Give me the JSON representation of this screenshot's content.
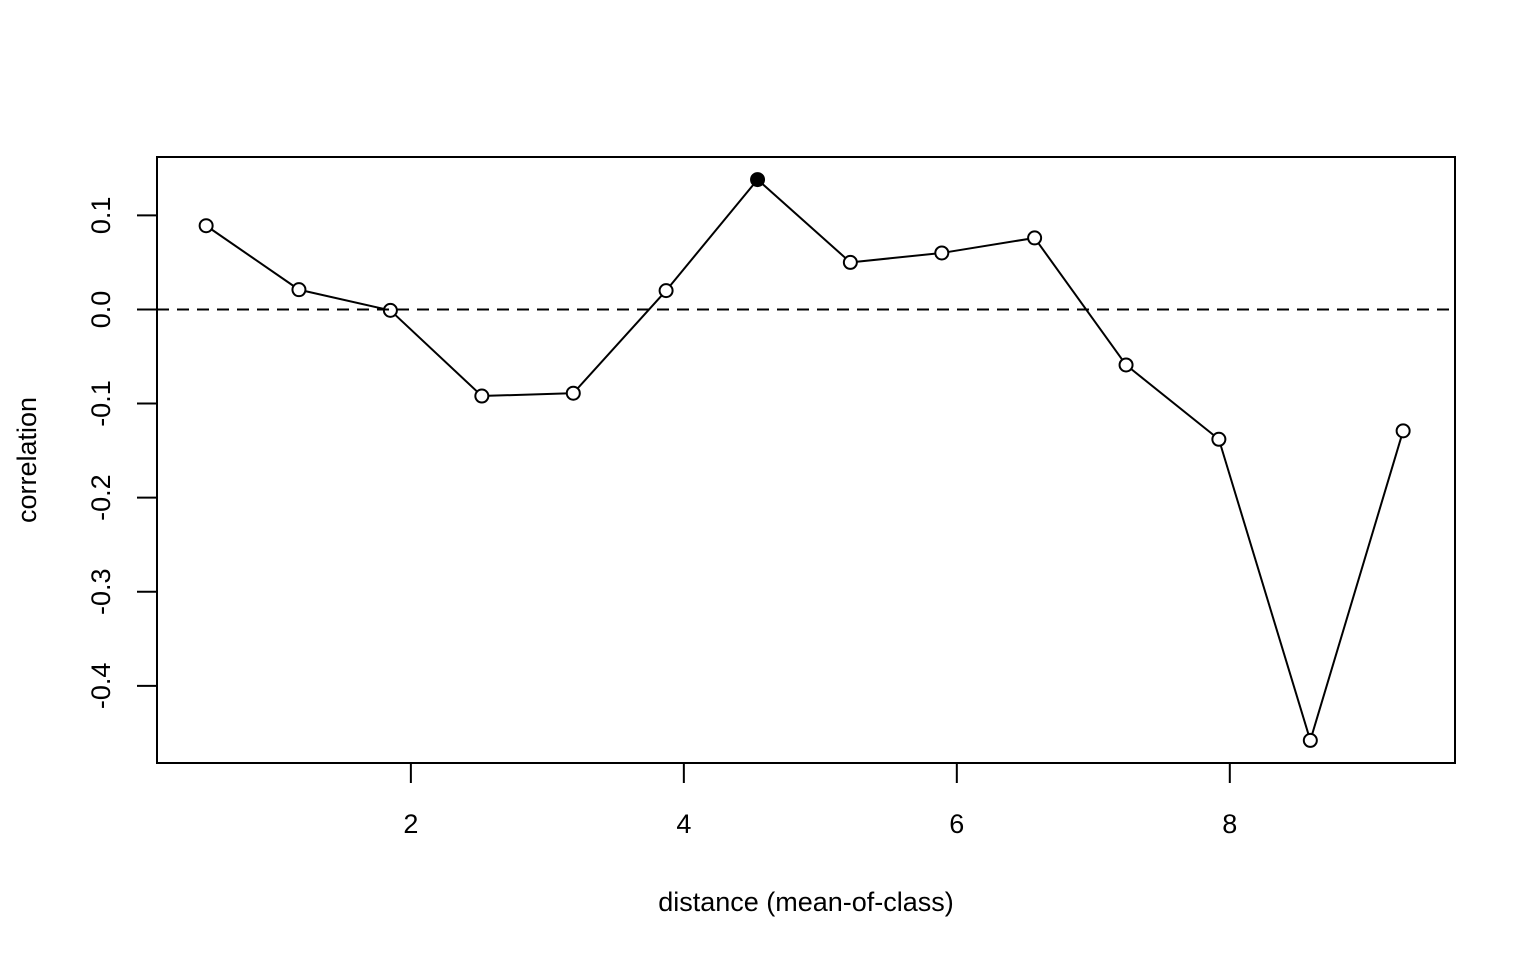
{
  "chart_data": {
    "type": "line",
    "xlabel": "distance (mean-of-class)",
    "ylabel": "correlation",
    "xlim": [
      0.14,
      9.65
    ],
    "ylim": [
      -0.482,
      0.162
    ],
    "x_ticks": [
      2,
      4,
      6,
      8
    ],
    "x_tick_labels": [
      "2",
      "4",
      "6",
      "8"
    ],
    "y_ticks": [
      -0.4,
      -0.3,
      -0.2,
      -0.1,
      0.0,
      0.1
    ],
    "y_tick_labels": [
      "-0.4",
      "-0.3",
      "-0.2",
      "-0.1",
      "0.0",
      "0.1"
    ],
    "reference_line": {
      "y": 0.0,
      "style": "dashed"
    },
    "grid": false,
    "series": [
      {
        "x": [
          0.5,
          1.18,
          1.85,
          2.52,
          3.19,
          3.87,
          4.54,
          5.22,
          5.89,
          6.57,
          7.24,
          7.92,
          8.59,
          9.27
        ],
        "y": [
          0.089,
          0.021,
          -0.001,
          -0.092,
          -0.089,
          0.02,
          0.138,
          0.05,
          0.06,
          0.076,
          -0.059,
          -0.138,
          -0.458,
          -0.129
        ],
        "filled": [
          false,
          false,
          false,
          false,
          false,
          false,
          true,
          false,
          false,
          false,
          false,
          false,
          false,
          false
        ]
      }
    ],
    "colors": {
      "line": "#000000",
      "marker": "#000000",
      "background": "#ffffff"
    }
  }
}
